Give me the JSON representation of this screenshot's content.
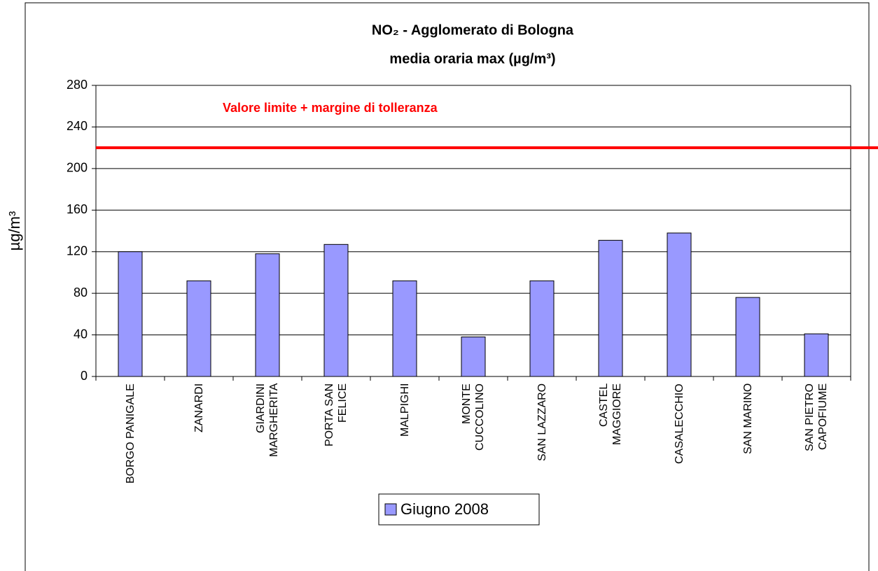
{
  "chart_data": {
    "type": "bar",
    "title": "NO₂ - Agglomerato di Bologna",
    "subtitle": "media oraria max  (µg/m³)",
    "y_label": "µg/m³",
    "categories": [
      "BORGO PANIGALE",
      "ZANARDI",
      "GIARDINI MARGHERITA",
      "PORTA SAN FELICE",
      "MALPIGHI",
      "MONTE CUCCOLINO",
      "SAN LAZZARO",
      "CASTEL MAGGIORE",
      "CASALECCHIO",
      "SAN MARINO",
      "SAN PIETRO CAPOFIUME"
    ],
    "series": [
      {
        "name": "Giugno 2008",
        "color": "#9999ff",
        "values": [
          120,
          92,
          118,
          127,
          92,
          38,
          92,
          131,
          138,
          76,
          41
        ]
      }
    ],
    "ylim": [
      0,
      280
    ],
    "yticks": [
      0,
      40,
      80,
      120,
      160,
      200,
      240,
      280
    ],
    "grid": true,
    "limit": 220,
    "limit_color": "#ff0000",
    "annotation": "Valore limite + margine di tolleranza"
  }
}
